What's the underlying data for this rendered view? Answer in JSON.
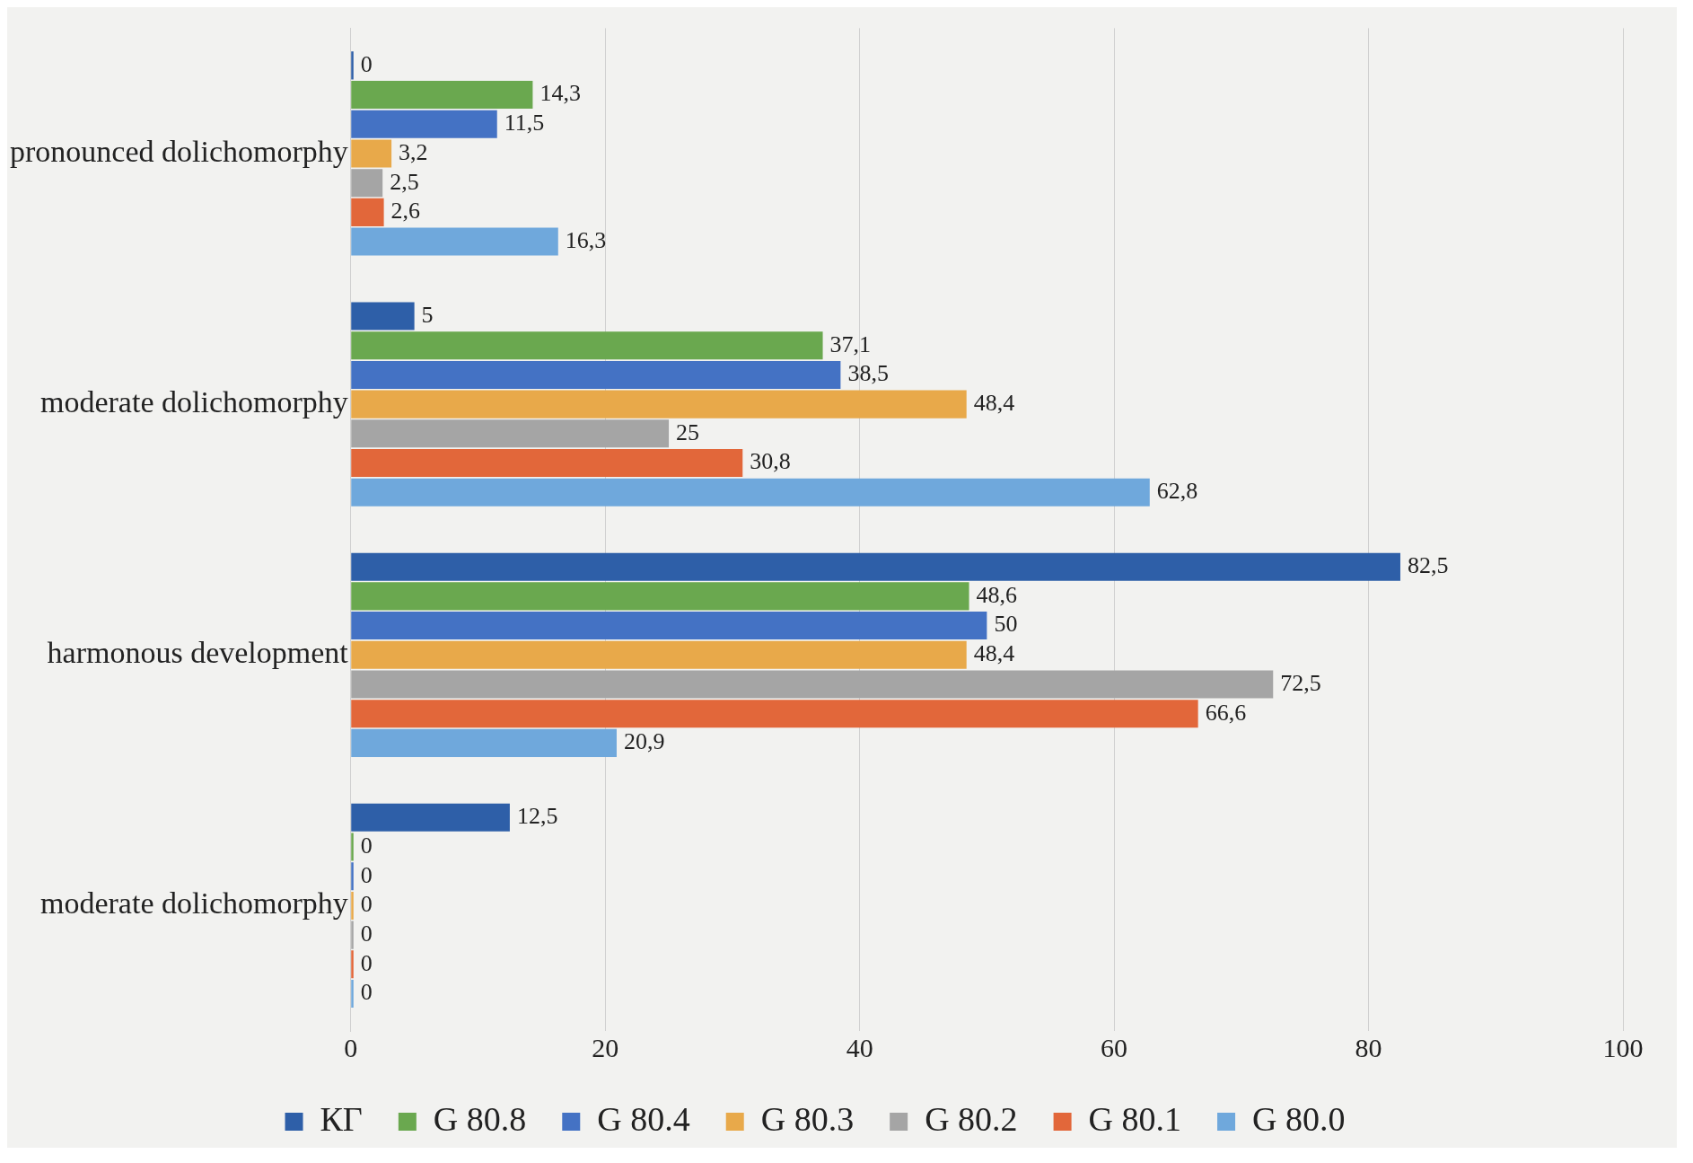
{
  "chart_data": {
    "type": "bar",
    "orientation": "horizontal",
    "categories": [
      "pronounced dolichomorphy",
      "moderate dolichomorphy",
      "harmonous development",
      "moderate dolichomorphy"
    ],
    "series": [
      {
        "name": "КГ",
        "color": "#2e5fa8",
        "values": [
          0,
          5,
          82.5,
          12.5
        ],
        "value_labels": [
          "0",
          "5",
          "82,5",
          "12,5"
        ]
      },
      {
        "name": "G 80.8",
        "color": "#6aa84f",
        "values": [
          14.3,
          37.1,
          48.6,
          0
        ],
        "value_labels": [
          "14,3",
          "37,1",
          "48,6",
          "0"
        ]
      },
      {
        "name": "G 80.4",
        "color": "#4472c4",
        "values": [
          11.5,
          38.5,
          50,
          0
        ],
        "value_labels": [
          "11,5",
          "38,5",
          "50",
          "0"
        ]
      },
      {
        "name": "G 80.3",
        "color": "#e8a94a",
        "values": [
          3.2,
          48.4,
          48.4,
          0
        ],
        "value_labels": [
          "3,2",
          "48,4",
          "48,4",
          "0"
        ]
      },
      {
        "name": "G 80.2",
        "color": "#a5a5a5",
        "values": [
          2.5,
          25,
          72.5,
          0
        ],
        "value_labels": [
          "2,5",
          "25",
          "72,5",
          "0"
        ]
      },
      {
        "name": "G 80.1",
        "color": "#e2673a",
        "values": [
          2.6,
          30.8,
          66.6,
          0
        ],
        "value_labels": [
          "2,6",
          "30,8",
          "66,6",
          "0"
        ]
      },
      {
        "name": "G 80.0",
        "color": "#6fa8dc",
        "values": [
          16.3,
          62.8,
          20.9,
          0
        ],
        "value_labels": [
          "16,3",
          "62,8",
          "20,9",
          "0"
        ]
      }
    ],
    "xlim": [
      0,
      100
    ],
    "xticks": [
      0,
      20,
      40,
      60,
      80,
      100
    ],
    "grid": "x",
    "legend": "bottom"
  }
}
